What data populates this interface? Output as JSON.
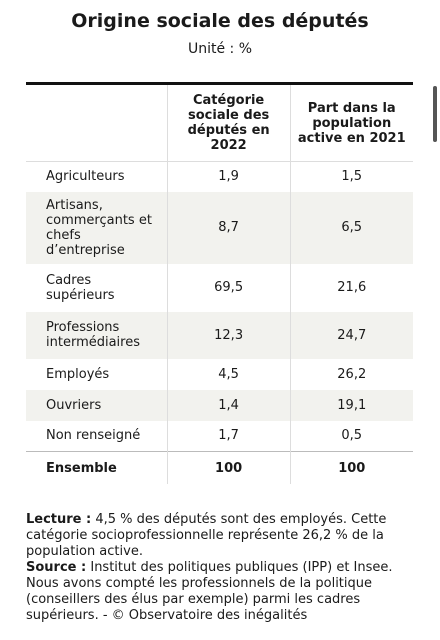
{
  "header": {
    "title": "Origine sociale des députés",
    "subtitle": "Unité : %"
  },
  "table": {
    "columns": [
      "",
      "Catégorie sociale des députés en 2022",
      "Part dans la population active en 2021"
    ],
    "rows": [
      [
        "Agriculteurs",
        "1,9",
        "1,5"
      ],
      [
        "Artisans, commerçants et chefs d’entreprise",
        "8,7",
        "6,5"
      ],
      [
        "Cadres supérieurs",
        "69,5",
        "21,6"
      ],
      [
        "Professions intermédiaires",
        "12,3",
        "24,7"
      ],
      [
        "Employés",
        "4,5",
        "26,2"
      ],
      [
        "Ouvriers",
        "1,4",
        "19,1"
      ],
      [
        "Non renseigné",
        "1,7",
        "0,5"
      ]
    ],
    "total": [
      "Ensemble",
      "100",
      "100"
    ]
  },
  "notes": {
    "lecture": {
      "label": "Lecture :",
      "text": "4,5 % des députés sont des employés. Cette catégorie socioprofessionnelle représente 26,2 % de la population active."
    },
    "source": {
      "label": "Source :",
      "text": "Institut des politiques publiques (IPP) et Insee. Nous avons compté les professionnels de la politique (conseillers des élus par exemple) parmi les cadres supérieurs. - © Observatoire des inégalités"
    }
  }
}
